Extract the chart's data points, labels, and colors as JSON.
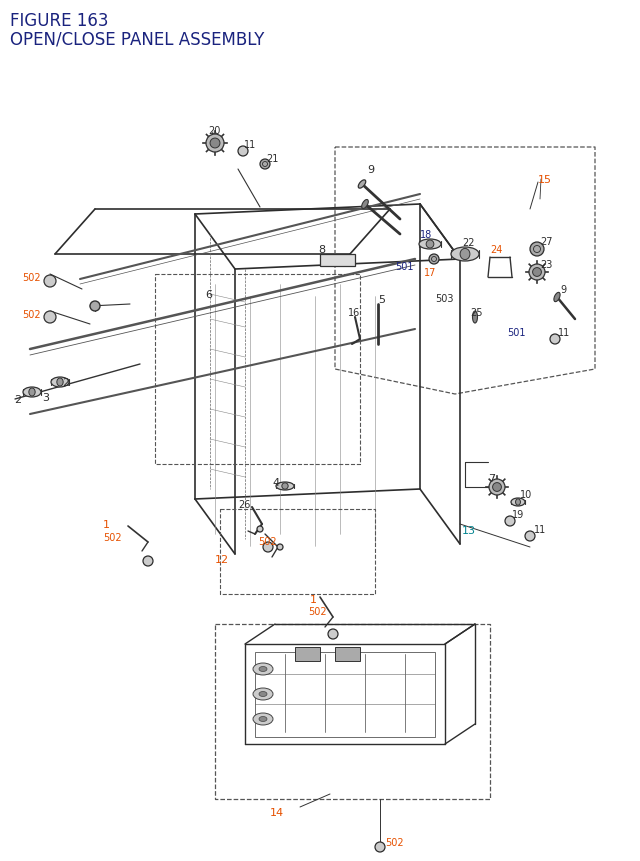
{
  "title_line1": "FIGURE 163",
  "title_line2": "OPEN/CLOSE PANEL ASSEMBLY",
  "bg_color": "#ffffff",
  "lc": "#2d2d2d",
  "bc": "#1a237e",
  "oc": "#e65100",
  "tc": "#00838f",
  "dc": "#555555"
}
